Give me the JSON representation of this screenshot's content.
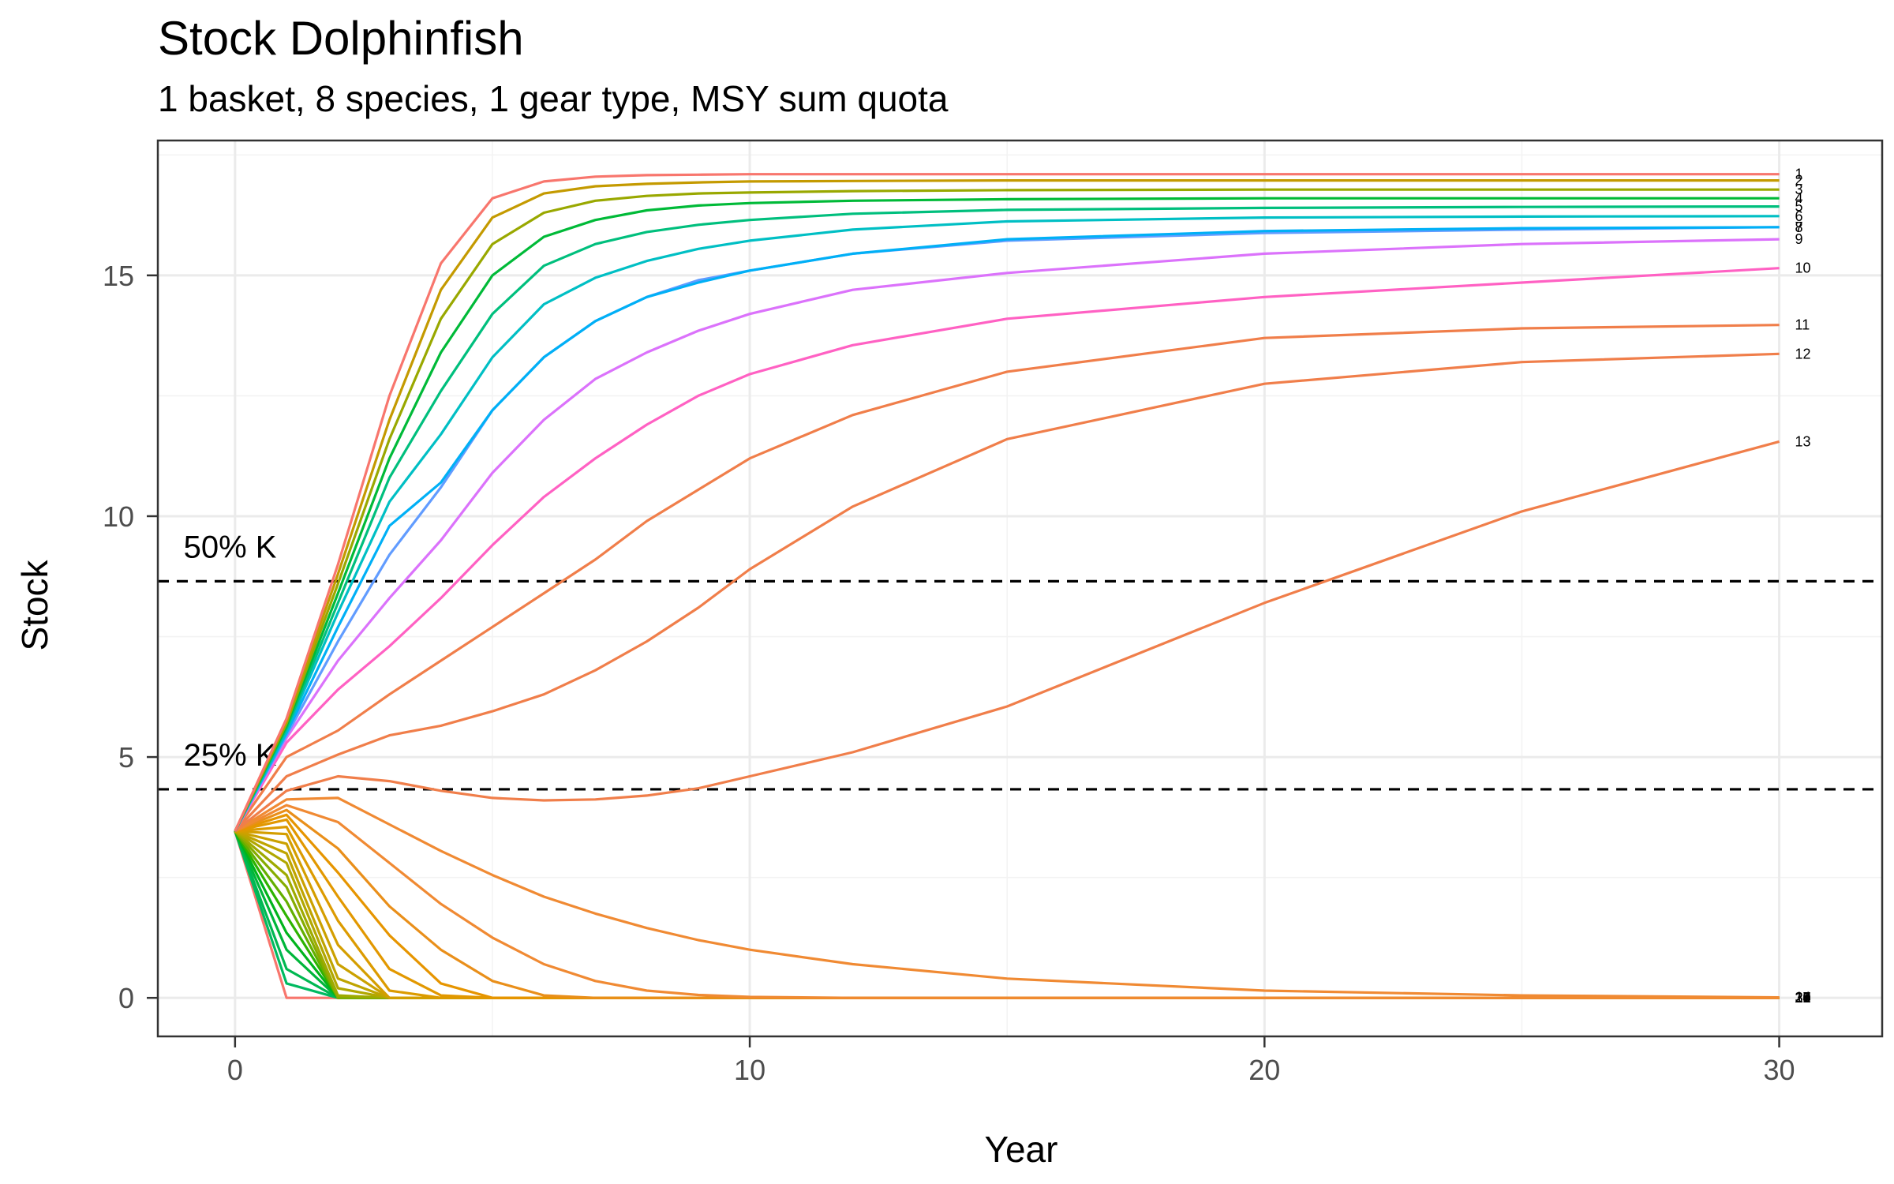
{
  "chart_data": {
    "type": "line",
    "title": "Stock Dolphinfish",
    "subtitle": "1 basket, 8 species, 1 gear type, MSY sum quota",
    "xlabel": "Year",
    "ylabel": "Stock",
    "xlim": [
      -1.5,
      32
    ],
    "ylim": [
      -0.8,
      17.8
    ],
    "x_ticks": [
      0,
      10,
      20,
      30
    ],
    "x_tick_labels": [
      "0",
      "10",
      "20",
      "30"
    ],
    "y_ticks": [
      0,
      5,
      10,
      15
    ],
    "y_tick_labels": [
      "0",
      "5",
      "10",
      "15"
    ],
    "grid": true,
    "legend": "none",
    "reference_lines": [
      {
        "label": "50% K",
        "y": 8.65,
        "style": "dashed",
        "color": "#000000"
      },
      {
        "label": "25% K",
        "y": 4.33,
        "style": "dashed",
        "color": "#000000"
      }
    ],
    "series": [
      {
        "label": "1",
        "color": "#F8766D",
        "x": [
          0,
          1,
          2,
          3,
          4,
          5,
          6,
          7,
          8,
          9,
          10,
          12,
          15,
          20,
          25,
          30
        ],
        "values": [
          3.46,
          5.8,
          9.0,
          12.5,
          15.25,
          16.6,
          16.95,
          17.05,
          17.08,
          17.09,
          17.1,
          17.1,
          17.1,
          17.1,
          17.1,
          17.1
        ]
      },
      {
        "label": "2",
        "color": "#C49A00",
        "x": [
          0,
          1,
          2,
          3,
          4,
          5,
          6,
          7,
          8,
          9,
          10,
          12,
          15,
          20,
          25,
          30
        ],
        "values": [
          3.46,
          5.75,
          8.8,
          12.0,
          14.7,
          16.2,
          16.7,
          16.85,
          16.9,
          16.93,
          16.95,
          16.96,
          16.97,
          16.97,
          16.97,
          16.97
        ]
      },
      {
        "label": "3",
        "color": "#99A800",
        "x": [
          0,
          1,
          2,
          3,
          4,
          5,
          6,
          7,
          8,
          9,
          10,
          12,
          15,
          20,
          25,
          30
        ],
        "values": [
          3.46,
          5.7,
          8.6,
          11.6,
          14.1,
          15.65,
          16.3,
          16.55,
          16.65,
          16.7,
          16.72,
          16.75,
          16.77,
          16.78,
          16.78,
          16.78
        ]
      },
      {
        "label": "4",
        "color": "#00BA38",
        "x": [
          0,
          1,
          2,
          3,
          4,
          5,
          6,
          7,
          8,
          9,
          10,
          12,
          15,
          20,
          25,
          30
        ],
        "values": [
          3.46,
          5.65,
          8.4,
          11.2,
          13.4,
          15.0,
          15.8,
          16.15,
          16.35,
          16.45,
          16.5,
          16.55,
          16.58,
          16.6,
          16.6,
          16.6
        ]
      },
      {
        "label": "5",
        "color": "#00BF7D",
        "x": [
          0,
          1,
          2,
          3,
          4,
          5,
          6,
          7,
          8,
          9,
          10,
          12,
          15,
          20,
          25,
          30
        ],
        "values": [
          3.46,
          5.6,
          8.2,
          10.8,
          12.6,
          14.2,
          15.2,
          15.65,
          15.9,
          16.05,
          16.15,
          16.28,
          16.36,
          16.4,
          16.42,
          16.43
        ]
      },
      {
        "label": "6",
        "color": "#00BFC4",
        "x": [
          0,
          1,
          2,
          3,
          4,
          5,
          6,
          7,
          8,
          9,
          10,
          12,
          15,
          20,
          25,
          30
        ],
        "values": [
          3.46,
          5.55,
          8.0,
          10.3,
          11.7,
          13.3,
          14.4,
          14.95,
          15.3,
          15.55,
          15.72,
          15.95,
          16.12,
          16.2,
          16.22,
          16.23
        ]
      },
      {
        "label": "7",
        "color": "#00B0F6",
        "x": [
          0,
          1,
          2,
          3,
          4,
          5,
          6,
          7,
          8,
          9,
          10,
          12,
          15,
          20,
          25,
          30
        ],
        "values": [
          3.46,
          5.5,
          7.7,
          9.8,
          10.7,
          12.2,
          13.3,
          14.05,
          14.55,
          14.85,
          15.1,
          15.45,
          15.75,
          15.92,
          15.98,
          16.0
        ]
      },
      {
        "label": "8",
        "color": "#619CFF",
        "x": [
          0,
          1,
          2,
          3,
          4,
          5,
          6,
          7,
          8,
          9,
          10,
          12,
          15,
          20,
          25,
          30
        ],
        "values": [
          3.46,
          5.45,
          7.4,
          9.2,
          10.6,
          12.2,
          13.3,
          14.05,
          14.55,
          14.9,
          15.1,
          15.45,
          15.72,
          15.88,
          15.95,
          16.0
        ]
      },
      {
        "label": "9",
        "color": "#DB72FB",
        "x": [
          0,
          1,
          2,
          3,
          4,
          5,
          6,
          7,
          8,
          9,
          10,
          12,
          15,
          20,
          25,
          30
        ],
        "values": [
          3.46,
          5.4,
          7.0,
          8.3,
          9.5,
          10.9,
          12.0,
          12.85,
          13.4,
          13.85,
          14.2,
          14.7,
          15.05,
          15.45,
          15.65,
          15.75
        ]
      },
      {
        "label": "10",
        "color": "#FF61C3",
        "x": [
          0,
          1,
          2,
          3,
          4,
          5,
          6,
          7,
          8,
          9,
          10,
          12,
          15,
          20,
          25,
          30
        ],
        "values": [
          3.46,
          5.3,
          6.4,
          7.3,
          8.3,
          9.4,
          10.4,
          11.2,
          11.9,
          12.5,
          12.95,
          13.55,
          14.1,
          14.55,
          14.85,
          15.15
        ]
      },
      {
        "label": "11",
        "color": "#F07E4A",
        "x": [
          0,
          1,
          2,
          3,
          4,
          5,
          6,
          7,
          8,
          9,
          10,
          12,
          15,
          20,
          25,
          30
        ],
        "values": [
          3.46,
          5.0,
          5.55,
          6.3,
          7.0,
          7.7,
          8.4,
          9.1,
          9.9,
          10.55,
          11.2,
          12.1,
          13.0,
          13.7,
          13.9,
          13.97
        ]
      },
      {
        "label": "12",
        "color": "#F07E4A",
        "x": [
          0,
          1,
          2,
          3,
          4,
          5,
          6,
          7,
          8,
          9,
          10,
          12,
          15,
          20,
          25,
          30
        ],
        "values": [
          3.46,
          4.6,
          5.05,
          5.45,
          5.65,
          5.95,
          6.3,
          6.8,
          7.4,
          8.1,
          8.9,
          10.2,
          11.6,
          12.75,
          13.2,
          13.37
        ]
      },
      {
        "label": "13",
        "color": "#F07E4A",
        "x": [
          0,
          1,
          2,
          3,
          4,
          5,
          6,
          7,
          8,
          9,
          10,
          12,
          15,
          20,
          25,
          30
        ],
        "values": [
          3.46,
          4.3,
          4.6,
          4.5,
          4.3,
          4.15,
          4.1,
          4.12,
          4.2,
          4.35,
          4.6,
          5.1,
          6.05,
          8.2,
          10.1,
          11.55
        ]
      },
      {
        "label": "14",
        "color": "#F08A33",
        "x": [
          0,
          1,
          2,
          3,
          4,
          5,
          6,
          7,
          8,
          9,
          10,
          12,
          15,
          20,
          25,
          30
        ],
        "values": [
          3.46,
          4.12,
          4.15,
          3.6,
          3.05,
          2.55,
          2.1,
          1.75,
          1.45,
          1.2,
          1.0,
          0.7,
          0.4,
          0.15,
          0.05,
          0.01
        ]
      },
      {
        "label": "15",
        "color": "#F08A33",
        "x": [
          0,
          1,
          2,
          3,
          4,
          5,
          6,
          7,
          8,
          9,
          10,
          12,
          15,
          20,
          25,
          30
        ],
        "values": [
          3.46,
          4.0,
          3.65,
          2.8,
          1.95,
          1.25,
          0.7,
          0.35,
          0.15,
          0.06,
          0.02,
          0,
          0,
          0,
          0,
          0
        ]
      },
      {
        "label": "16",
        "color": "#E98F1A",
        "x": [
          0,
          1,
          2,
          3,
          4,
          5,
          6,
          7,
          8,
          9,
          10,
          12,
          15,
          20,
          25,
          30
        ],
        "values": [
          3.46,
          3.9,
          3.1,
          1.9,
          1.0,
          0.35,
          0.05,
          0,
          0,
          0,
          0,
          0,
          0,
          0,
          0,
          0
        ]
      },
      {
        "label": "17",
        "color": "#E69500",
        "x": [
          0,
          1,
          2,
          3,
          4,
          5,
          6,
          7,
          8,
          9,
          10,
          12,
          15,
          20,
          25,
          30
        ],
        "values": [
          3.46,
          3.8,
          2.6,
          1.3,
          0.3,
          0,
          0,
          0,
          0,
          0,
          0,
          0,
          0,
          0,
          0,
          0
        ]
      },
      {
        "label": "18",
        "color": "#E29800",
        "x": [
          0,
          1,
          2,
          3,
          4,
          5,
          6,
          7,
          8,
          9,
          10,
          12,
          15,
          20,
          25,
          30
        ],
        "values": [
          3.46,
          3.7,
          2.1,
          0.6,
          0.05,
          0,
          0,
          0,
          0,
          0,
          0,
          0,
          0,
          0,
          0,
          0
        ]
      },
      {
        "label": "19",
        "color": "#DC9B00",
        "x": [
          0,
          1,
          2,
          3,
          4,
          5,
          6,
          7,
          8,
          9,
          10,
          12,
          15,
          20,
          25,
          30
        ],
        "values": [
          3.46,
          3.55,
          1.6,
          0.15,
          0,
          0,
          0,
          0,
          0,
          0,
          0,
          0,
          0,
          0,
          0,
          0
        ]
      },
      {
        "label": "20",
        "color": "#D49E00",
        "x": [
          0,
          1,
          2,
          3,
          4,
          5,
          6,
          7,
          8,
          9,
          10,
          12,
          15,
          20,
          25,
          30
        ],
        "values": [
          3.46,
          3.4,
          1.1,
          0,
          0,
          0,
          0,
          0,
          0,
          0,
          0,
          0,
          0,
          0,
          0,
          0
        ]
      },
      {
        "label": "21",
        "color": "#CBA100",
        "x": [
          0,
          1,
          2,
          3,
          4,
          5,
          6,
          7,
          8,
          9,
          10,
          12,
          15,
          20,
          25,
          30
        ],
        "values": [
          3.46,
          3.2,
          0.7,
          0,
          0,
          0,
          0,
          0,
          0,
          0,
          0,
          0,
          0,
          0,
          0,
          0
        ]
      },
      {
        "label": "22",
        "color": "#BFA400",
        "x": [
          0,
          1,
          2,
          3,
          4,
          5,
          6,
          7,
          8,
          9,
          10,
          12,
          15,
          20,
          25,
          30
        ],
        "values": [
          3.46,
          3.0,
          0.4,
          0,
          0,
          0,
          0,
          0,
          0,
          0,
          0,
          0,
          0,
          0,
          0,
          0
        ]
      },
      {
        "label": "23",
        "color": "#B1A700",
        "x": [
          0,
          1,
          2,
          3,
          4,
          5,
          6,
          7,
          8,
          9,
          10,
          12,
          15,
          20,
          25,
          30
        ],
        "values": [
          3.46,
          2.8,
          0.2,
          0,
          0,
          0,
          0,
          0,
          0,
          0,
          0,
          0,
          0,
          0,
          0,
          0
        ]
      },
      {
        "label": "24",
        "color": "#9EAA00",
        "x": [
          0,
          1,
          2,
          3,
          4,
          5,
          6,
          7,
          8,
          9,
          10,
          12,
          15,
          20,
          25,
          30
        ],
        "values": [
          3.46,
          2.55,
          0.05,
          0,
          0,
          0,
          0,
          0,
          0,
          0,
          0,
          0,
          0,
          0,
          0,
          0
        ]
      },
      {
        "label": "25",
        "color": "#86AC00",
        "x": [
          0,
          1,
          2,
          3,
          4,
          5,
          6,
          7,
          8,
          9,
          10,
          12,
          15,
          20,
          25,
          30
        ],
        "values": [
          3.46,
          2.3,
          0,
          0,
          0,
          0,
          0,
          0,
          0,
          0,
          0,
          0,
          0,
          0,
          0,
          0
        ]
      },
      {
        "label": "26",
        "color": "#64AF00",
        "x": [
          0,
          1,
          2,
          3,
          4,
          5,
          6,
          7,
          8,
          9,
          10,
          12,
          15,
          20,
          25,
          30
        ],
        "values": [
          3.46,
          2.0,
          0,
          0,
          0,
          0,
          0,
          0,
          0,
          0,
          0,
          0,
          0,
          0,
          0,
          0
        ]
      },
      {
        "label": "27",
        "color": "#2DB300",
        "x": [
          0,
          1,
          2,
          3,
          4,
          5,
          6,
          7,
          8,
          9,
          10,
          12,
          15,
          20,
          25,
          30
        ],
        "values": [
          3.46,
          1.7,
          0,
          0,
          0,
          0,
          0,
          0,
          0,
          0,
          0,
          0,
          0,
          0,
          0,
          0
        ]
      },
      {
        "label": "28",
        "color": "#00B41C",
        "x": [
          0,
          1,
          2,
          3,
          4,
          5,
          6,
          7,
          8,
          9,
          10,
          12,
          15,
          20,
          25,
          30
        ],
        "values": [
          3.46,
          1.35,
          0,
          0,
          0,
          0,
          0,
          0,
          0,
          0,
          0,
          0,
          0,
          0,
          0,
          0
        ]
      },
      {
        "label": "29",
        "color": "#00B63A",
        "x": [
          0,
          1,
          2,
          3,
          4,
          5,
          6,
          7,
          8,
          9,
          10,
          12,
          15,
          20,
          25,
          30
        ],
        "values": [
          3.46,
          1.0,
          0,
          0,
          0,
          0,
          0,
          0,
          0,
          0,
          0,
          0,
          0,
          0,
          0,
          0
        ]
      },
      {
        "label": "30",
        "color": "#00B851",
        "x": [
          0,
          1,
          2,
          3,
          4,
          5,
          6,
          7,
          8,
          9,
          10,
          12,
          15,
          20,
          25,
          30
        ],
        "values": [
          3.46,
          0.6,
          0,
          0,
          0,
          0,
          0,
          0,
          0,
          0,
          0,
          0,
          0,
          0,
          0,
          0
        ]
      },
      {
        "label": "31",
        "color": "#00BA60",
        "x": [
          0,
          1,
          2,
          3,
          4,
          5,
          6,
          7,
          8,
          9,
          10,
          12,
          15,
          20,
          25,
          30
        ],
        "values": [
          3.46,
          0.3,
          0,
          0,
          0,
          0,
          0,
          0,
          0,
          0,
          0,
          0,
          0,
          0,
          0,
          0
        ]
      },
      {
        "label": "32",
        "color": "#F8766D",
        "x": [
          0,
          1,
          2,
          3,
          4,
          5,
          6,
          7,
          8,
          9,
          10,
          12,
          15,
          20,
          25,
          30
        ],
        "values": [
          3.46,
          0,
          0,
          0,
          0,
          0,
          0,
          0,
          0,
          0,
          0,
          0,
          0,
          0,
          0,
          0
        ]
      }
    ]
  }
}
